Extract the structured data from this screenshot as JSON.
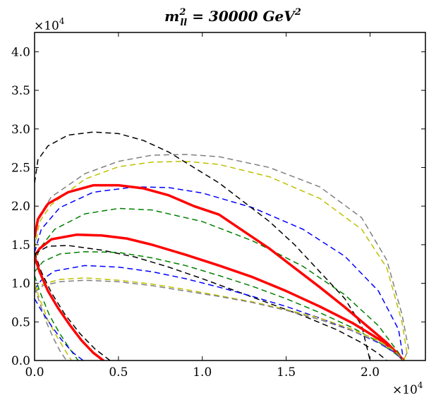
{
  "chart_data": {
    "type": "line",
    "title": {
      "prefix": "m",
      "sup": "2",
      "sub": "ll",
      "suffix": " = 30000 GeV",
      "suffix_sup": "2"
    },
    "xlabel": "",
    "ylabel": "",
    "xlim": [
      0,
      23300
    ],
    "ylim": [
      0,
      42500
    ],
    "grid": false,
    "legend": "none",
    "x_ticks": [
      {
        "value": 0,
        "label": "0.0"
      },
      {
        "value": 5000,
        "label": "0.5"
      },
      {
        "value": 10000,
        "label": "1.0"
      },
      {
        "value": 15000,
        "label": "1.5"
      },
      {
        "value": 20000,
        "label": "2.0"
      }
    ],
    "y_ticks": [
      {
        "value": 0,
        "label": "0.0"
      },
      {
        "value": 5000,
        "label": "0.5"
      },
      {
        "value": 10000,
        "label": "1.0"
      },
      {
        "value": 15000,
        "label": "1.5"
      },
      {
        "value": 20000,
        "label": "2.0"
      },
      {
        "value": 25000,
        "label": "2.5"
      },
      {
        "value": 30000,
        "label": "3.0"
      },
      {
        "value": 35000,
        "label": "3.5"
      },
      {
        "value": 40000,
        "label": "4.0"
      }
    ],
    "x_multiplier": {
      "base": "×10",
      "exp": "4"
    },
    "y_multiplier": {
      "base": "×10",
      "exp": "4"
    },
    "series": [
      {
        "name": "gray-outer",
        "color": "#808080",
        "style": "dashed",
        "width": 1.5,
        "points": [
          [
            0,
            15000
          ],
          [
            200,
            18500
          ],
          [
            1000,
            21200
          ],
          [
            3000,
            24200
          ],
          [
            5000,
            25800
          ],
          [
            7000,
            26600
          ],
          [
            9000,
            26700
          ],
          [
            11000,
            26400
          ],
          [
            14000,
            25000
          ],
          [
            17000,
            22500
          ],
          [
            19500,
            18500
          ],
          [
            21000,
            13000
          ],
          [
            21900,
            6000
          ],
          [
            22300,
            1500
          ],
          [
            22000,
            0
          ]
        ]
      },
      {
        "name": "yellow-outer",
        "color": "#bfbf00",
        "style": "dashed",
        "width": 1.5,
        "points": [
          [
            0,
            14500
          ],
          [
            300,
            18000
          ],
          [
            1000,
            20200
          ],
          [
            3000,
            23500
          ],
          [
            5000,
            25100
          ],
          [
            7000,
            25700
          ],
          [
            9000,
            25800
          ],
          [
            11000,
            25400
          ],
          [
            14000,
            23800
          ],
          [
            17000,
            21000
          ],
          [
            19500,
            17000
          ],
          [
            21000,
            12000
          ],
          [
            21900,
            5000
          ],
          [
            22200,
            1000
          ],
          [
            22000,
            0
          ]
        ]
      },
      {
        "name": "blue-outer",
        "color": "#0000ff",
        "style": "dashed",
        "width": 1.5,
        "points": [
          [
            0,
            14000
          ],
          [
            400,
            17000
          ],
          [
            1500,
            19800
          ],
          [
            3500,
            21800
          ],
          [
            6000,
            22500
          ],
          [
            8000,
            22400
          ],
          [
            10000,
            21700
          ],
          [
            13000,
            19800
          ],
          [
            16000,
            17000
          ],
          [
            18500,
            13500
          ],
          [
            20500,
            9000
          ],
          [
            21700,
            4000
          ],
          [
            22000,
            0
          ]
        ]
      },
      {
        "name": "green-outer",
        "color": "#008000",
        "style": "dashed",
        "width": 1.5,
        "points": [
          [
            0,
            12500
          ],
          [
            300,
            14500
          ],
          [
            1200,
            17000
          ],
          [
            3000,
            19000
          ],
          [
            5000,
            19700
          ],
          [
            7000,
            19500
          ],
          [
            10000,
            18000
          ],
          [
            13000,
            15500
          ],
          [
            16000,
            12200
          ],
          [
            18500,
            8500
          ],
          [
            20500,
            4500
          ],
          [
            21700,
            1000
          ],
          [
            22000,
            0
          ]
        ]
      },
      {
        "name": "black-outer",
        "color": "#000000",
        "style": "dashed",
        "width": 1.5,
        "points": [
          [
            0,
            23000
          ],
          [
            200,
            26000
          ],
          [
            800,
            27800
          ],
          [
            2000,
            29200
          ],
          [
            3500,
            29600
          ],
          [
            5000,
            29400
          ],
          [
            6500,
            28500
          ],
          [
            8000,
            27000
          ],
          [
            9500,
            25000
          ],
          [
            11000,
            23000
          ],
          [
            12500,
            20500
          ],
          [
            14000,
            18000
          ],
          [
            15500,
            15000
          ],
          [
            17000,
            11500
          ],
          [
            18500,
            8000
          ],
          [
            19500,
            4500
          ],
          [
            20000,
            0
          ]
        ]
      },
      {
        "name": "red-outer",
        "color": "#ff0000",
        "style": "solid",
        "width": 3.5,
        "points": [
          [
            0,
            16000
          ],
          [
            200,
            18300
          ],
          [
            800,
            20300
          ],
          [
            2000,
            21800
          ],
          [
            3500,
            22700
          ],
          [
            5000,
            22700
          ],
          [
            6500,
            22300
          ],
          [
            8000,
            21400
          ],
          [
            9500,
            20000
          ],
          [
            11000,
            18900
          ],
          [
            12500,
            16700
          ],
          [
            14000,
            14500
          ],
          [
            15500,
            12000
          ],
          [
            17000,
            9500
          ],
          [
            18500,
            6900
          ],
          [
            19800,
            4500
          ],
          [
            21000,
            2300
          ],
          [
            21500,
            1200
          ],
          [
            22000,
            0
          ]
        ]
      },
      {
        "name": "red-inner",
        "color": "#ff0000",
        "style": "solid",
        "width": 3.5,
        "points": [
          [
            0,
            13500
          ],
          [
            300,
            14500
          ],
          [
            1000,
            15700
          ],
          [
            2500,
            16300
          ],
          [
            4000,
            16200
          ],
          [
            5500,
            15800
          ],
          [
            7000,
            15000
          ],
          [
            9000,
            13700
          ],
          [
            11000,
            12300
          ],
          [
            13000,
            10800
          ],
          [
            15000,
            9000
          ],
          [
            17000,
            7000
          ],
          [
            19000,
            4800
          ],
          [
            20500,
            2800
          ],
          [
            21500,
            1200
          ],
          [
            22000,
            0
          ]
        ]
      },
      {
        "name": "black-inner",
        "color": "#000000",
        "style": "dashed",
        "width": 1.5,
        "points": [
          [
            0,
            13800
          ],
          [
            800,
            14800
          ],
          [
            2000,
            14900
          ],
          [
            4000,
            14300
          ],
          [
            6000,
            13400
          ],
          [
            8000,
            12100
          ],
          [
            10000,
            10600
          ],
          [
            12000,
            9000
          ],
          [
            14000,
            7400
          ],
          [
            16000,
            5800
          ],
          [
            18000,
            4000
          ],
          [
            19500,
            2300
          ],
          [
            20500,
            900
          ],
          [
            21000,
            0
          ]
        ]
      },
      {
        "name": "green-inner",
        "color": "#008000",
        "style": "dashed",
        "width": 1.5,
        "points": [
          [
            0,
            11500
          ],
          [
            500,
            12800
          ],
          [
            1500,
            13800
          ],
          [
            3000,
            14100
          ],
          [
            5000,
            14000
          ],
          [
            7000,
            13300
          ],
          [
            9000,
            12300
          ],
          [
            11000,
            11000
          ],
          [
            13000,
            9600
          ],
          [
            15000,
            8000
          ],
          [
            17000,
            6200
          ],
          [
            19000,
            4200
          ],
          [
            20500,
            2400
          ],
          [
            21500,
            900
          ],
          [
            22000,
            0
          ]
        ]
      },
      {
        "name": "blue-inner",
        "color": "#0000ff",
        "style": "dashed",
        "width": 1.5,
        "points": [
          [
            0,
            9200
          ],
          [
            400,
            10400
          ],
          [
            1200,
            11600
          ],
          [
            3000,
            12300
          ],
          [
            5000,
            12100
          ],
          [
            7000,
            11500
          ],
          [
            9000,
            10600
          ],
          [
            11000,
            9500
          ],
          [
            13000,
            8300
          ],
          [
            15000,
            7000
          ],
          [
            17000,
            5500
          ],
          [
            19000,
            3800
          ],
          [
            20500,
            2300
          ],
          [
            21500,
            1000
          ],
          [
            22000,
            0
          ]
        ]
      },
      {
        "name": "yellow-inner",
        "color": "#bfbf00",
        "style": "dashed",
        "width": 1.5,
        "points": [
          [
            0,
            9000
          ],
          [
            500,
            9900
          ],
          [
            1500,
            10500
          ],
          [
            3000,
            10700
          ],
          [
            5000,
            10400
          ],
          [
            7000,
            9900
          ],
          [
            9000,
            9200
          ],
          [
            11000,
            8400
          ],
          [
            13000,
            7600
          ],
          [
            15000,
            6600
          ],
          [
            17000,
            5500
          ],
          [
            19000,
            4000
          ],
          [
            20500,
            2600
          ],
          [
            21500,
            1200
          ],
          [
            22000,
            0
          ]
        ]
      },
      {
        "name": "gray-inner",
        "color": "#808080",
        "style": "dashed",
        "width": 1.5,
        "points": [
          [
            0,
            8800
          ],
          [
            500,
            9700
          ],
          [
            1500,
            10200
          ],
          [
            3000,
            10400
          ],
          [
            5000,
            10200
          ],
          [
            7000,
            9700
          ],
          [
            9000,
            9000
          ],
          [
            11000,
            8300
          ],
          [
            13000,
            7500
          ],
          [
            15000,
            6500
          ],
          [
            17000,
            5300
          ],
          [
            19000,
            3800
          ],
          [
            20500,
            2400
          ],
          [
            21500,
            1100
          ],
          [
            22000,
            0
          ]
        ]
      },
      {
        "name": "gray-lower",
        "color": "#808080",
        "style": "dashed",
        "width": 1.5,
        "points": [
          [
            0,
            9500
          ],
          [
            300,
            7500
          ],
          [
            700,
            5000
          ],
          [
            1100,
            3000
          ],
          [
            1500,
            1300
          ],
          [
            1900,
            0
          ]
        ]
      },
      {
        "name": "yellow-lower",
        "color": "#bfbf00",
        "style": "dashed",
        "width": 1.5,
        "points": [
          [
            0,
            10000
          ],
          [
            300,
            8000
          ],
          [
            800,
            5200
          ],
          [
            1300,
            3200
          ],
          [
            1800,
            1400
          ],
          [
            2200,
            0
          ]
        ]
      },
      {
        "name": "green-lower",
        "color": "#008000",
        "style": "dashed",
        "width": 1.5,
        "points": [
          [
            0,
            11000
          ],
          [
            300,
            9000
          ],
          [
            900,
            5800
          ],
          [
            1500,
            3500
          ],
          [
            2100,
            1500
          ],
          [
            2600,
            0
          ]
        ]
      },
      {
        "name": "blue-lower",
        "color": "#0000ff",
        "style": "dashed",
        "width": 1.5,
        "points": [
          [
            0,
            8000
          ],
          [
            400,
            6500
          ],
          [
            1000,
            4500
          ],
          [
            1600,
            2700
          ],
          [
            2300,
            1000
          ],
          [
            2900,
            0
          ]
        ]
      },
      {
        "name": "black-lower",
        "color": "#000000",
        "style": "dashed",
        "width": 1.5,
        "points": [
          [
            0,
            14000
          ],
          [
            400,
            11500
          ],
          [
            1000,
            8800
          ],
          [
            1800,
            6000
          ],
          [
            2700,
            3500
          ],
          [
            3600,
            1500
          ],
          [
            4500,
            0
          ]
        ]
      },
      {
        "name": "red-lower",
        "color": "#ff0000",
        "style": "solid",
        "width": 3.5,
        "points": [
          [
            0,
            13500
          ],
          [
            300,
            11500
          ],
          [
            800,
            9000
          ],
          [
            1400,
            6800
          ],
          [
            2100,
            4600
          ],
          [
            2800,
            2600
          ],
          [
            3500,
            1000
          ],
          [
            4100,
            0
          ]
        ]
      }
    ]
  }
}
